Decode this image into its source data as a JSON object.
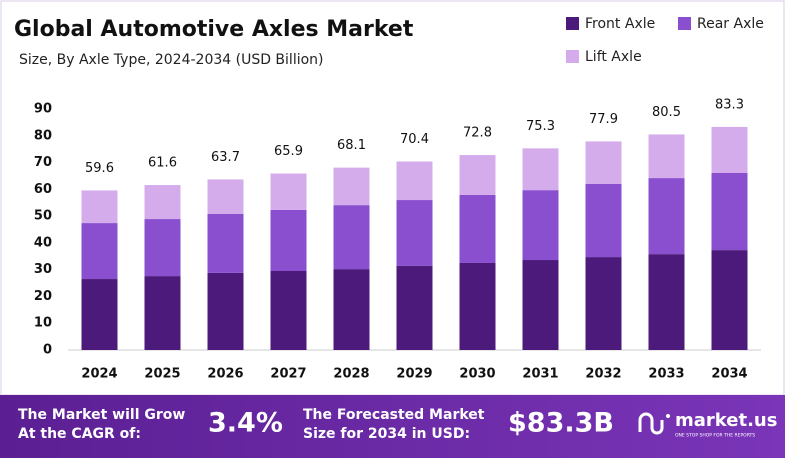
{
  "chart_data": {
    "type": "stacked_bar",
    "title": "Global Automotive Axles Market",
    "subtitle": "Size, By Axle Type, 2024-2034 (USD Billion)",
    "categories": [
      "2024",
      "2025",
      "2026",
      "2027",
      "2028",
      "2029",
      "2030",
      "2031",
      "2032",
      "2033",
      "2034"
    ],
    "series": [
      {
        "name": "Front Axle",
        "color": "#4b1a7a",
        "values": [
          26.5,
          27.6,
          28.8,
          29.5,
          30.2,
          31.4,
          32.5,
          33.6,
          34.7,
          35.8,
          37.3
        ]
      },
      {
        "name": "Rear Axle",
        "color": "#8a4fcf",
        "values": [
          20.9,
          21.3,
          22.0,
          22.8,
          23.9,
          24.6,
          25.4,
          26.1,
          27.3,
          28.4,
          28.8
        ]
      },
      {
        "name": "Lift Axle",
        "color": "#d4acec",
        "values": [
          12.2,
          12.7,
          12.9,
          13.6,
          14.0,
          14.4,
          14.9,
          15.6,
          15.9,
          16.3,
          17.2
        ]
      }
    ],
    "totals": [
      59.6,
      61.6,
      63.7,
      65.9,
      68.1,
      70.4,
      72.8,
      75.3,
      77.9,
      80.5,
      83.3
    ],
    "ylim": [
      0,
      90
    ],
    "yticks": [
      0,
      10,
      20,
      30,
      40,
      50,
      60,
      70,
      80,
      90
    ],
    "grid": false,
    "legend": "top-right"
  },
  "footer": {
    "cagr_text": [
      "The Market will Grow",
      "At the CAGR of:"
    ],
    "cagr": "3.4%",
    "forecast_text": [
      "The Forecasted Market",
      "Size for 2034 in USD:"
    ],
    "forecast": "$83.3B",
    "brand": "market.us",
    "tagline": "ONE STOP SHOP FOR THE REPORTS"
  }
}
